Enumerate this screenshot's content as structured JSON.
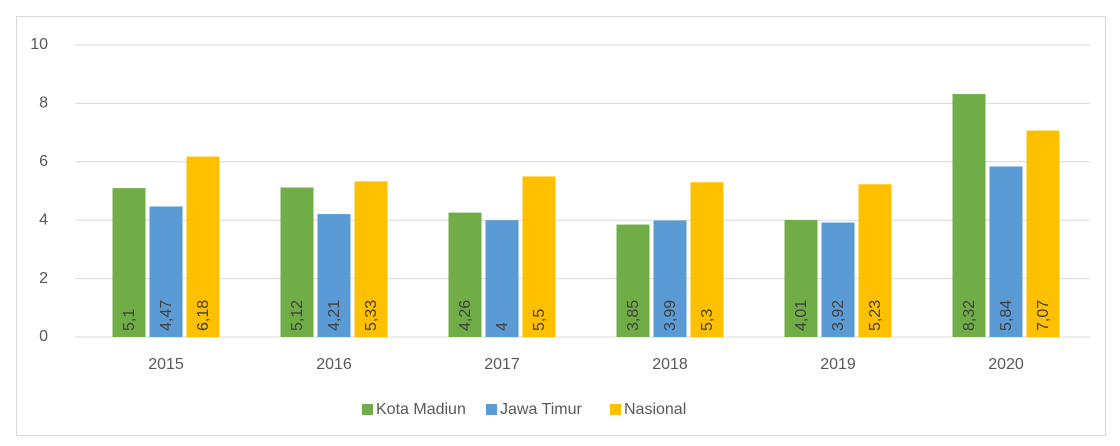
{
  "chart_data": {
    "type": "bar",
    "categories": [
      "2015",
      "2016",
      "2017",
      "2018",
      "2019",
      "2020"
    ],
    "series": [
      {
        "name": "Kota Madiun",
        "color": "#70ad47",
        "values": [
          5.1,
          5.12,
          4.26,
          3.85,
          4.01,
          8.32
        ],
        "value_labels": [
          "5,1",
          "5,12",
          "4,26",
          "3,85",
          "4,01",
          "8,32"
        ]
      },
      {
        "name": "Jawa Timur",
        "color": "#5b9bd5",
        "values": [
          4.47,
          4.21,
          4,
          3.99,
          3.92,
          5.84
        ],
        "value_labels": [
          "4,47",
          "4,21",
          "4",
          "3,99",
          "3,92",
          "5,84"
        ]
      },
      {
        "name": "Nasional",
        "color": "#ffc000",
        "values": [
          6.18,
          5.33,
          5.5,
          5.3,
          5.23,
          7.07
        ],
        "value_labels": [
          "6,18",
          "5,33",
          "5,5",
          "5,3",
          "5,23",
          "7,07"
        ]
      }
    ],
    "ylim": [
      0,
      10
    ],
    "yticks": [
      0,
      2,
      4,
      6,
      8,
      10
    ],
    "grid": true,
    "legend": "bottom"
  }
}
